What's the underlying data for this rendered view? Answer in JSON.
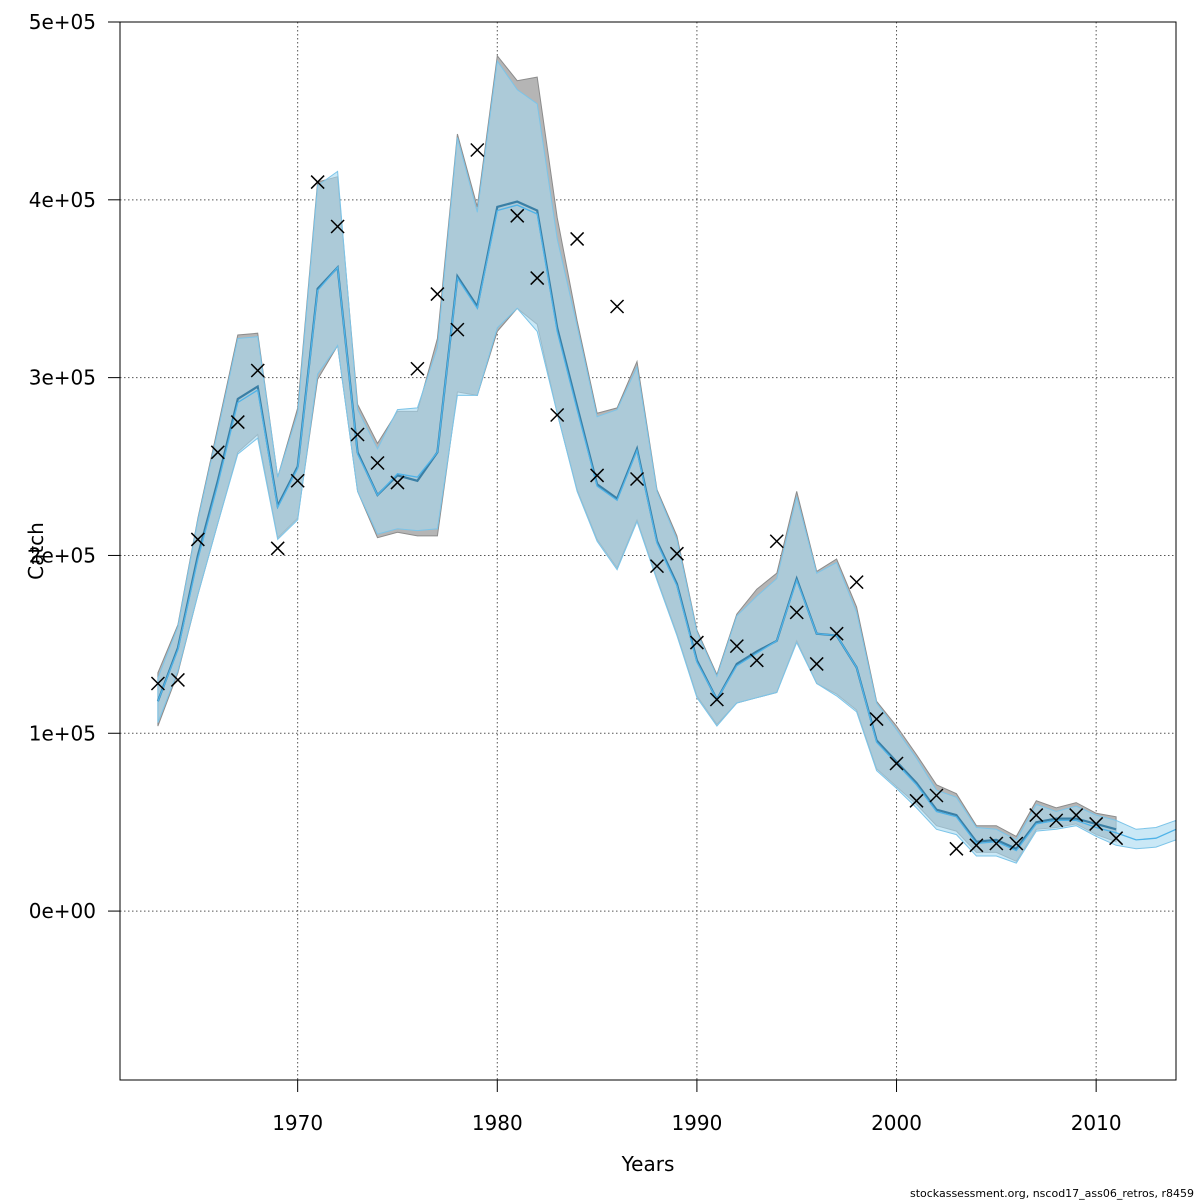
{
  "chart_data": {
    "type": "line",
    "xlabel": "Years",
    "ylabel": "Catch",
    "footer": "stockassessment.org, nscod17_ass06_retros, r8459",
    "xlim": [
      1961.1,
      2014
    ],
    "ylim": [
      -95000,
      500000
    ],
    "grid": true,
    "x_ticks": [
      {
        "value": 1970,
        "label": "1970"
      },
      {
        "value": 1980,
        "label": "1980"
      },
      {
        "value": 1990,
        "label": "1990"
      },
      {
        "value": 2000,
        "label": "2000"
      },
      {
        "value": 2010,
        "label": "2010"
      }
    ],
    "y_ticks": [
      {
        "value": 0,
        "label": "0e+00"
      },
      {
        "value": 100000,
        "label": "1e+05"
      },
      {
        "value": 200000,
        "label": "2e+05"
      },
      {
        "value": 300000,
        "label": "3e+05"
      },
      {
        "value": 400000,
        "label": "4e+05"
      },
      {
        "value": 500000,
        "label": "5e+05"
      }
    ],
    "colors": {
      "base_band": "#b5b5b5",
      "base_line": "#595959",
      "retro_band": "#a6d8f0",
      "retro_line": "#4fb3e8",
      "overlap_band": "#a3c4d6",
      "overlap_line": "#3a7fa5",
      "observed": "#000000",
      "grid": "#555555",
      "frame": "#000000"
    },
    "series": [
      {
        "role": "base-run",
        "x": [
          1963,
          1964,
          1965,
          1966,
          1967,
          1968,
          1969,
          1970,
          1971,
          1972,
          1973,
          1974,
          1975,
          1976,
          1977,
          1978,
          1979,
          1980,
          1981,
          1982,
          1983,
          1984,
          1985,
          1986,
          1987,
          1988,
          1989,
          1990,
          1991,
          1992,
          1993,
          1994,
          1995,
          1996,
          1997,
          1998,
          1999,
          2000,
          2001,
          2002,
          2003,
          2004,
          2005,
          2006,
          2007,
          2008,
          2009,
          2010,
          2011
        ],
        "mid": [
          118000,
          148000,
          200000,
          242000,
          288000,
          295000,
          228000,
          250000,
          350000,
          362000,
          258000,
          234000,
          245000,
          242000,
          258000,
          357000,
          340000,
          396000,
          399000,
          394000,
          328000,
          284000,
          240000,
          232000,
          260000,
          208000,
          184000,
          141000,
          119000,
          139000,
          146000,
          152000,
          187000,
          156000,
          155000,
          137000,
          96000,
          84000,
          72000,
          57000,
          54000,
          39000,
          40000,
          35000,
          50000,
          52000,
          52000,
          49000,
          46000
        ],
        "low": [
          104000,
          134000,
          178000,
          218000,
          258000,
          268000,
          210000,
          221000,
          299000,
          318000,
          236000,
          210000,
          213000,
          211000,
          211000,
          292000,
          290000,
          326000,
          339000,
          330000,
          280000,
          237000,
          209000,
          193000,
          220000,
          187000,
          156000,
          121000,
          105000,
          117000,
          120000,
          123000,
          152000,
          128000,
          122000,
          113000,
          80000,
          70000,
          60000,
          48000,
          45000,
          33000,
          33000,
          28000,
          46000,
          47000,
          49000,
          43000,
          39000
        ],
        "high": [
          134000,
          161000,
          221000,
          272000,
          324000,
          325000,
          244000,
          283000,
          410000,
          413000,
          285000,
          263000,
          281000,
          281000,
          322000,
          437000,
          396000,
          481000,
          467000,
          469000,
          390000,
          332000,
          280000,
          283000,
          309000,
          237000,
          211000,
          158000,
          133000,
          167000,
          181000,
          190000,
          236000,
          191000,
          198000,
          171000,
          118000,
          104000,
          88000,
          71000,
          66000,
          48000,
          48000,
          42000,
          62000,
          58000,
          61000,
          55000,
          53000
        ]
      },
      {
        "role": "retrospective-run",
        "x": [
          1963,
          1964,
          1965,
          1966,
          1967,
          1968,
          1969,
          1970,
          1971,
          1972,
          1973,
          1974,
          1975,
          1976,
          1977,
          1978,
          1979,
          1980,
          1981,
          1982,
          1983,
          1984,
          1985,
          1986,
          1987,
          1988,
          1989,
          1990,
          1991,
          1992,
          1993,
          1994,
          1995,
          1996,
          1997,
          1998,
          1999,
          2000,
          2001,
          2002,
          2003,
          2004,
          2005,
          2006,
          2007,
          2008,
          2009,
          2010,
          2011,
          2012,
          2013,
          2014
        ],
        "mid": [
          118000,
          147000,
          198000,
          240000,
          286000,
          293000,
          227000,
          249000,
          349000,
          362000,
          257000,
          234000,
          246000,
          244000,
          258000,
          356000,
          339000,
          394000,
          397000,
          392000,
          326000,
          282000,
          239000,
          231000,
          259000,
          207000,
          183000,
          140000,
          119000,
          138000,
          145000,
          152000,
          186000,
          156000,
          155000,
          137000,
          95000,
          83000,
          71000,
          56000,
          53000,
          38000,
          39000,
          34000,
          49000,
          51000,
          51000,
          47000,
          44000,
          40000,
          41000,
          46000
        ],
        "low": [
          106000,
          135000,
          178000,
          218000,
          257000,
          266000,
          209000,
          220000,
          302000,
          318000,
          236000,
          212000,
          215000,
          214000,
          215000,
          290000,
          290000,
          328000,
          339000,
          326000,
          280000,
          236000,
          208000,
          192000,
          219000,
          186000,
          155000,
          120000,
          104000,
          117000,
          120000,
          123000,
          151000,
          128000,
          121000,
          112000,
          79000,
          69000,
          58000,
          46000,
          43000,
          31000,
          31000,
          27000,
          45000,
          46000,
          48000,
          42000,
          37000,
          35000,
          36000,
          40000
        ],
        "high": [
          131000,
          160000,
          220000,
          270000,
          322000,
          323000,
          244000,
          280000,
          408000,
          416000,
          282000,
          260000,
          282000,
          283000,
          317000,
          435000,
          393000,
          478000,
          462000,
          454000,
          378000,
          329000,
          278000,
          282000,
          306000,
          236000,
          209000,
          157000,
          132000,
          166000,
          177000,
          187000,
          233000,
          190000,
          196000,
          168000,
          117000,
          102000,
          86000,
          68000,
          64000,
          47000,
          46000,
          40000,
          60000,
          56000,
          59000,
          54000,
          51000,
          46000,
          47000,
          51000
        ]
      }
    ],
    "observed": {
      "x": [
        1963,
        1964,
        1965,
        1966,
        1967,
        1968,
        1969,
        1970,
        1971,
        1972,
        1973,
        1974,
        1975,
        1976,
        1977,
        1978,
        1979,
        1980,
        1981,
        1982,
        1983,
        1984,
        1985,
        1986,
        1987,
        1988,
        1989,
        1990,
        1991,
        1992,
        1993,
        1994,
        1995,
        1996,
        1997,
        1998,
        1999,
        2000,
        2001,
        2002,
        2003,
        2004,
        2005,
        2006,
        2007,
        2008,
        2009,
        2010,
        2011
      ],
      "y": [
        128000,
        130000,
        209000,
        258000,
        275000,
        304000,
        204000,
        242000,
        410000,
        385000,
        268000,
        252000,
        241000,
        305000,
        347000,
        327000,
        428000,
        null,
        391000,
        356000,
        279000,
        378000,
        245000,
        340000,
        243000,
        194000,
        201000,
        151000,
        119000,
        149000,
        141000,
        208000,
        168000,
        139000,
        156000,
        185000,
        108000,
        83000,
        62000,
        65000,
        35000,
        37000,
        38000,
        38000,
        54000,
        51000,
        54000,
        49000,
        41000
      ]
    }
  }
}
